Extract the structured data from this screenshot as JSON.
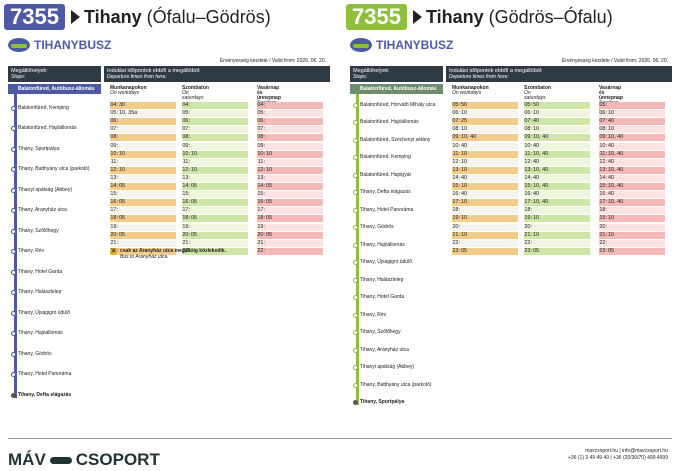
{
  "colors": {
    "route_blue": "#4d5aa3",
    "route_green": "#8dbf3a",
    "weekday": "#e4edc5",
    "saturday": "#cfe4a7",
    "sunday": "#f4b8b6",
    "school": "#f1cc8a"
  },
  "brand": "TIHANYBUSZ",
  "validity": "Érvényesség kezdete / Valid from: 2026. 06. 20.",
  "stops_head": {
    "title": "Megállóhelyek:",
    "sub": "Stops:"
  },
  "dep_head": {
    "title": "Indulási időpontok ebből a megállóból:",
    "sub": "Departure times from here:"
  },
  "col_heads": [
    {
      "t": "Munkanapokon",
      "s": "On workdays"
    },
    {
      "t": "Szombaton",
      "s": "On saturdays"
    },
    {
      "t": "Vasárnap és ünnepnap",
      "s": "Sundays, public holidays"
    }
  ],
  "left": {
    "route": "7355",
    "title_b": "Tihany",
    "title_r": " (Ófalu–Gödrös)",
    "stops": [
      "Balatonfüred, Autóbusz-állomás",
      "Balatonfüred, Kemping",
      "Balatonfüred, Hajóállomás",
      "Tihany, Sportpálya",
      "Tihany, Batthyány utca (parkoló)",
      "Tihanyi apátság (Abbey)",
      "Tihany, Aranyház utca",
      "Tihany, Szőlőhegy",
      "Tihany, Rév",
      "Tihany, Hotel Garda",
      "Tihany, Halásztelep",
      "Tihany, Újsági­gró üdülő",
      "Tihany, Hajóállomás",
      "Tihany, Gödrös",
      "Tihany, Hotel Panoráma",
      "Tihany, Defta elágazás"
    ],
    "rows": [
      {
        "h": "04:",
        "w": "30",
        "s": "",
        "u": ""
      },
      {
        "h": "05:",
        "w": "10, 35a",
        "s": "",
        "u": ""
      },
      {
        "h": "06:",
        "w": "",
        "s": "",
        "u": ""
      },
      {
        "h": "07:",
        "w": "",
        "s": "",
        "u": ""
      },
      {
        "h": "08:",
        "w": "",
        "s": "",
        "u": ""
      },
      {
        "h": "09:",
        "w": "",
        "s": "",
        "u": ""
      },
      {
        "h": "10:",
        "w": "10",
        "s": "10",
        "u": "10"
      },
      {
        "h": "11:",
        "w": "",
        "s": "",
        "u": ""
      },
      {
        "h": "12:",
        "w": "10",
        "s": "10",
        "u": "10"
      },
      {
        "h": "13:",
        "w": "",
        "s": "",
        "u": ""
      },
      {
        "h": "14:",
        "w": "05",
        "s": "05",
        "u": "05"
      },
      {
        "h": "15:",
        "w": "",
        "s": "",
        "u": ""
      },
      {
        "h": "16:",
        "w": "05",
        "s": "05",
        "u": "05"
      },
      {
        "h": "17:",
        "w": "",
        "s": "",
        "u": ""
      },
      {
        "h": "18:",
        "w": "05",
        "s": "05",
        "u": "05"
      },
      {
        "h": "19:",
        "w": "",
        "s": "",
        "u": ""
      },
      {
        "h": "20:",
        "w": "05",
        "s": "05",
        "u": "05"
      },
      {
        "h": "21:",
        "w": "",
        "s": "",
        "u": ""
      },
      {
        "h": "22:",
        "w": "",
        "s": "",
        "u": ""
      }
    ],
    "note_mark": "a",
    "note_b": "csak az Aranyház utca megállóig közlekedik.",
    "note_i": "Bus to Aranyház utca."
  },
  "right": {
    "route": "7355",
    "title_b": "Tihany",
    "title_r": " (Gödrös–Ófalu)",
    "stops": [
      "Balatonfüred, Autóbusz-állomás",
      "Balatonfüred, Horváth Mihály utca",
      "Balatonfüred, Hajóállomás",
      "Balatonfüred, Széchenyi sétány",
      "Balatonfüred, Kemping",
      "Balatonfüred, Hajógyár",
      "Tihany, Defta elágazás",
      "Tihany, Hotel Panoráma",
      "Tihany, Gödrös",
      "Tihany, Hajóállomás",
      "Tihany, Újsági­gró üdülő",
      "Tihany, Halásztelep",
      "Tihany, Hotel Garda",
      "Tihany, Rév",
      "Tihany, Szőlőhegy",
      "Tihany, Aranyház utca",
      "Tihanyi apátság (Abbey)",
      "Tihany, Batthyány utca (parkoló)",
      "Tihany, Sportpálya"
    ],
    "rows": [
      {
        "h": "05:",
        "w": "50",
        "s": "50",
        "u": ""
      },
      {
        "h": "06:",
        "w": "10",
        "s": "10",
        "u": "10"
      },
      {
        "h": "07:",
        "w": "25",
        "s": "40",
        "u": "40"
      },
      {
        "h": "08:",
        "w": "10",
        "s": "10",
        "u": "10"
      },
      {
        "h": "09:",
        "w": "10, 40",
        "s": "10, 40",
        "u": "10, 40"
      },
      {
        "h": "10:",
        "w": "40",
        "s": "40",
        "u": "40"
      },
      {
        "h": "11:",
        "w": "10",
        "s": "10, 40",
        "u": "10, 40"
      },
      {
        "h": "12:",
        "w": "10",
        "s": "40",
        "u": "40"
      },
      {
        "h": "13:",
        "w": "10",
        "s": "10, 40",
        "u": "10, 40"
      },
      {
        "h": "14:",
        "w": "40",
        "s": "40",
        "u": "40"
      },
      {
        "h": "15:",
        "w": "10",
        "s": "10, 40",
        "u": "10, 40"
      },
      {
        "h": "16:",
        "w": "40",
        "s": "40",
        "u": "40"
      },
      {
        "h": "17:",
        "w": "10",
        "s": "10, 40",
        "u": "10, 40"
      },
      {
        "h": "18:",
        "w": "",
        "s": "",
        "u": ""
      },
      {
        "h": "19:",
        "w": "10",
        "s": "10",
        "u": "10"
      },
      {
        "h": "20:",
        "w": "",
        "s": "",
        "u": ""
      },
      {
        "h": "21:",
        "w": "10",
        "s": "10",
        "u": "10"
      },
      {
        "h": "22:",
        "w": "",
        "s": "",
        "u": ""
      },
      {
        "h": "23:",
        "w": "05",
        "s": "05",
        "u": "05"
      }
    ]
  },
  "footer": {
    "brand_left": "MÁV",
    "brand_right": "CSOPORT",
    "contact_1": "mavcsoport.hu | info@mavcsoport.hu",
    "contact_2": "+36 (1) 3 49 49 49 | +36 (20/30/70) 499 4999"
  }
}
